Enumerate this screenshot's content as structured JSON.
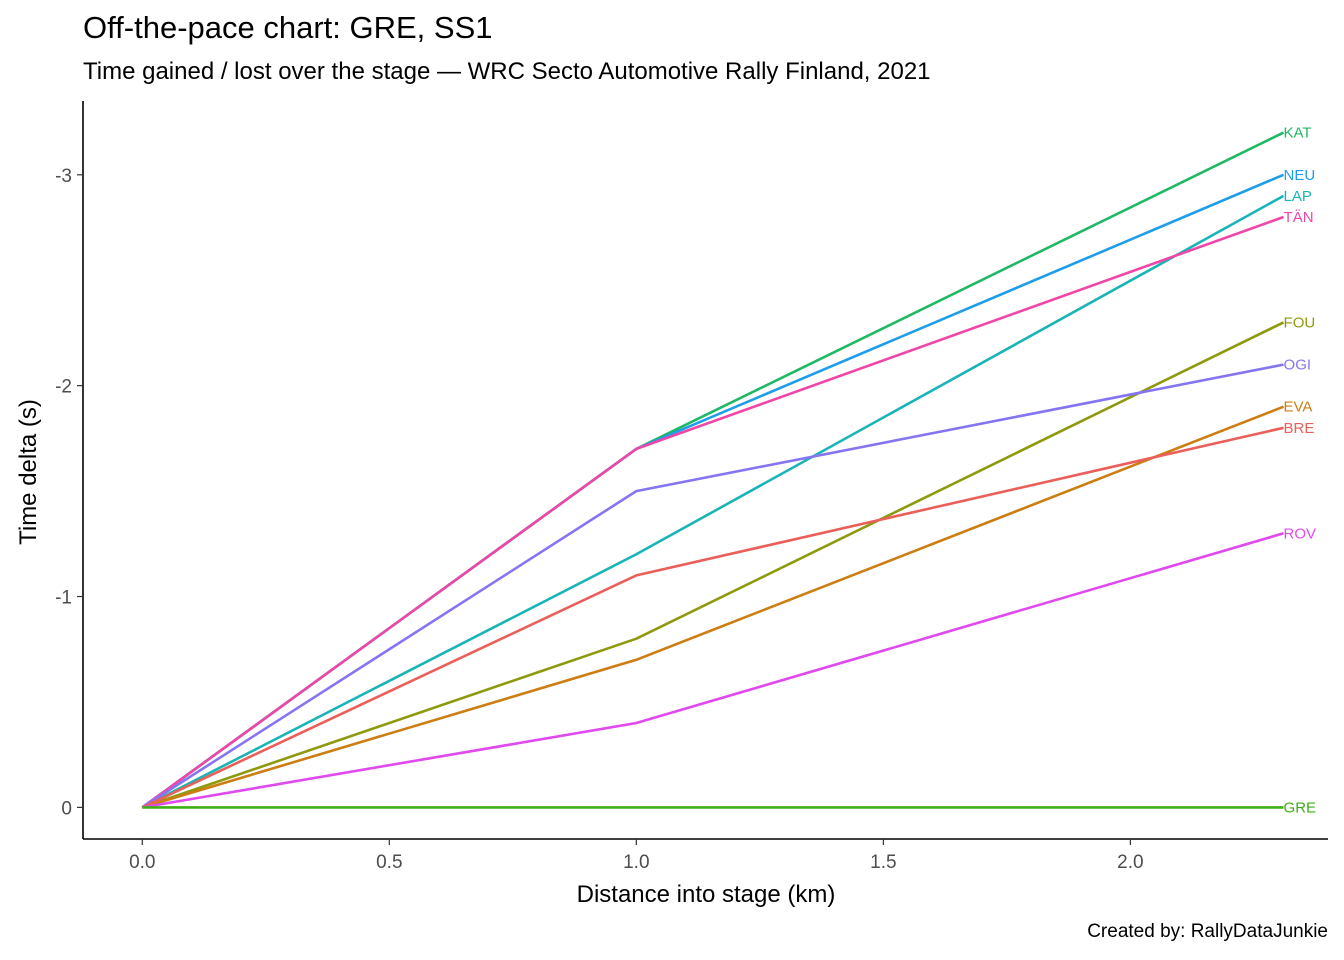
{
  "chart_data": {
    "type": "line",
    "title": "Off-the-pace chart: GRE, SS1",
    "subtitle": "Time gained / lost over the stage — WRC Secto Automotive Rally Finland, 2021",
    "caption": "Created by: RallyDataJunkie",
    "xlabel": "Distance into stage (km)",
    "ylabel": "Time delta (s)",
    "xlim": [
      -0.12,
      2.4
    ],
    "ylim": [
      0.15,
      -3.35
    ],
    "y_reversed": true,
    "x_ticks": [
      0.0,
      0.5,
      1.0,
      1.5,
      2.0
    ],
    "x_tick_labels": [
      "0.0",
      "0.5",
      "1.0",
      "1.5",
      "2.0"
    ],
    "y_ticks": [
      0,
      -1,
      -2,
      -3
    ],
    "y_tick_labels": [
      "0",
      "-1",
      "-2",
      "-3"
    ],
    "grid": false,
    "legend": "none",
    "x": [
      0,
      1.0,
      2.31
    ],
    "series": [
      {
        "name": "KAT",
        "color": "#1FB864",
        "values": [
          0,
          -1.7,
          -3.2
        ]
      },
      {
        "name": "NEU",
        "color": "#1E9EEA",
        "values": [
          0,
          -1.7,
          -3.0
        ]
      },
      {
        "name": "LAP",
        "color": "#19B4B8",
        "values": [
          0,
          -1.2,
          -2.9
        ]
      },
      {
        "name": "TÄN",
        "color": "#F046A8",
        "values": [
          0,
          -1.7,
          -2.8
        ]
      },
      {
        "name": "FOU",
        "color": "#8E9A0E",
        "values": [
          0,
          -0.8,
          -2.3
        ]
      },
      {
        "name": "OGI",
        "color": "#8575F2",
        "values": [
          0,
          -1.5,
          -2.1
        ]
      },
      {
        "name": "EVA",
        "color": "#CC7E12",
        "values": [
          0,
          -0.7,
          -1.9
        ]
      },
      {
        "name": "BRE",
        "color": "#EA5F5A",
        "values": [
          0,
          -1.1,
          -1.8
        ]
      },
      {
        "name": "ROV",
        "color": "#E049EE",
        "values": [
          0,
          -0.4,
          -1.3
        ]
      },
      {
        "name": "GRE",
        "color": "#3EAE16",
        "values": [
          0,
          0,
          0
        ]
      }
    ]
  }
}
